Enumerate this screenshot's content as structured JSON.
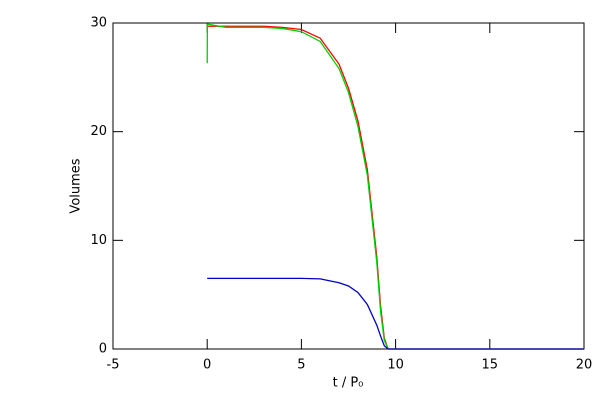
{
  "chart_data": {
    "type": "line",
    "x_label": "t / P₀",
    "y_label": "Volumes",
    "x": [
      0,
      0.01,
      1,
      2,
      3,
      4,
      5,
      6,
      7,
      7.5,
      8,
      8.5,
      9,
      9.2,
      9.4,
      9.6,
      10,
      15,
      20
    ],
    "series": [
      {
        "color": "#ff0000",
        "values": [
          29.7,
          29.7,
          29.7,
          29.7,
          29.7,
          29.6,
          29.4,
          28.6,
          26.2,
          24.0,
          21.0,
          16.5,
          8.5,
          4.0,
          1.0,
          0,
          0,
          0,
          0
        ]
      },
      {
        "color": "#00d000",
        "values": [
          26.3,
          29.9,
          29.6,
          29.6,
          29.6,
          29.5,
          29.2,
          28.3,
          25.8,
          23.6,
          20.5,
          16.0,
          8.0,
          3.5,
          0.8,
          0,
          0,
          0,
          0
        ]
      },
      {
        "color": "#0000c8",
        "values": [
          6.5,
          6.5,
          6.5,
          6.5,
          6.5,
          6.5,
          6.5,
          6.45,
          6.1,
          5.8,
          5.2,
          4.1,
          2.2,
          1.2,
          0.3,
          0,
          0,
          0,
          0
        ]
      }
    ],
    "xlim": [
      -5,
      20
    ],
    "ylim": [
      0,
      30
    ],
    "xticks": [
      -5,
      0,
      5,
      10,
      15,
      20
    ],
    "yticks": [
      0,
      10,
      20,
      30
    ]
  }
}
